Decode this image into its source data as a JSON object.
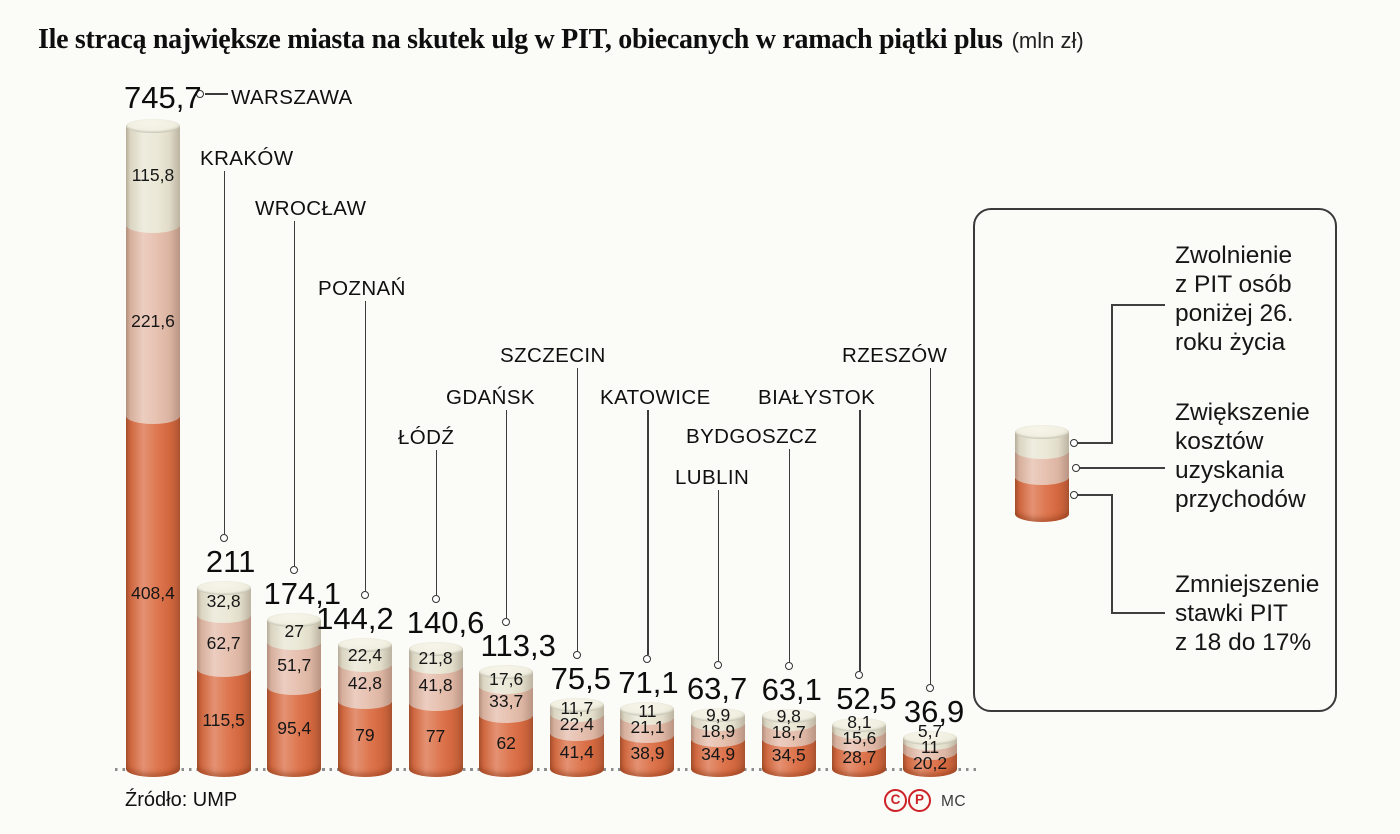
{
  "title": {
    "main": "Ile stracą największe miasta na skutek ulg w PIT, obiecanych w ramach piątki plus",
    "unit": "(mln zł)"
  },
  "source": "Źródło: UMP",
  "footer": {
    "copyright_letter": "C",
    "phonogram_letter": "P",
    "credit": "MC"
  },
  "colors": {
    "segment_top_cream": "#e9e6d3",
    "segment_middle_pink": "#e5bcaa",
    "segment_bottom_orange": "#db6b41",
    "cap": "#f1efe0",
    "accent_red": "#cd2127",
    "line": "#3c3c3c",
    "text": "#111111"
  },
  "chart_data": {
    "type": "bar",
    "subtype": "stacked-cylinder",
    "title": "Ile stracą największe miasta na skutek ulg w PIT, obiecanych w ramach piątki plus",
    "unit": "mln zł",
    "grid": false,
    "legend_position": "right",
    "baseline_style": "dotted",
    "categories": [
      "WARSZAWA",
      "KRAKÓW",
      "WROCŁAW",
      "POZNAŃ",
      "ŁÓDŹ",
      "GDAŃSK",
      "SZCZECIN",
      "KATOWICE",
      "LUBLIN",
      "BYDGOSZCZ",
      "BIAŁYSTOK",
      "RZESZÓW"
    ],
    "totals": [
      745.7,
      211,
      174.1,
      144.2,
      140.6,
      113.3,
      75.5,
      71.1,
      63.7,
      63.1,
      52.5,
      36.9
    ],
    "total_labels": [
      "745,7",
      "211",
      "174,1",
      "144,2",
      "140,6",
      "113,3",
      "75,5",
      "71,1",
      "63,7",
      "63,1",
      "52,5",
      "36,9"
    ],
    "series": [
      {
        "name": "Zwolnienie z PIT osób poniżej 26. roku życia",
        "stack_position": "top",
        "color": "#e9e6d3",
        "values": [
          115.8,
          32.8,
          27,
          22.4,
          21.8,
          17.6,
          11.7,
          11,
          9.9,
          9.8,
          8.1,
          5.7
        ],
        "labels": [
          "115,8",
          "32,8",
          "27",
          "22,4",
          "21,8",
          "17,6",
          "11,7",
          "11",
          "9,9",
          "9,8",
          "8,1",
          "5,7"
        ]
      },
      {
        "name": "Zwiększenie kosztów uzyskania przychodów",
        "stack_position": "middle",
        "color": "#e5bcaa",
        "values": [
          221.6,
          62.7,
          51.7,
          42.8,
          41.8,
          33.7,
          22.4,
          21.1,
          18.9,
          18.7,
          15.6,
          11
        ],
        "labels": [
          "221,6",
          "62,7",
          "51,7",
          "42,8",
          "41,8",
          "33,7",
          "22,4",
          "21,1",
          "18,9",
          "18,7",
          "15,6",
          "11"
        ]
      },
      {
        "name": "Zmniejszenie stawki PIT z 18 do 17%",
        "stack_position": "bottom",
        "color": "#db6b41",
        "values": [
          408.4,
          115.5,
          95.4,
          79,
          77,
          62,
          41.4,
          38.9,
          34.9,
          34.5,
          28.7,
          20.2
        ],
        "labels": [
          "408,4",
          "115,5",
          "95,4",
          "79",
          "77",
          "62",
          "41,4",
          "38,9",
          "34,9",
          "34,5",
          "28,7",
          "20,2"
        ]
      }
    ]
  },
  "legend": {
    "items": [
      {
        "series": "top",
        "lines": [
          "Zwolnienie",
          "z PIT osób",
          "poniżej 26.",
          "roku życia"
        ]
      },
      {
        "series": "middle",
        "lines": [
          "Zwiększenie",
          "kosztów",
          "uzyskania",
          "przychodów"
        ]
      },
      {
        "series": "bottom",
        "lines": [
          "Zmniejszenie",
          "stawki PIT",
          "z 18 do 17%"
        ]
      }
    ]
  }
}
